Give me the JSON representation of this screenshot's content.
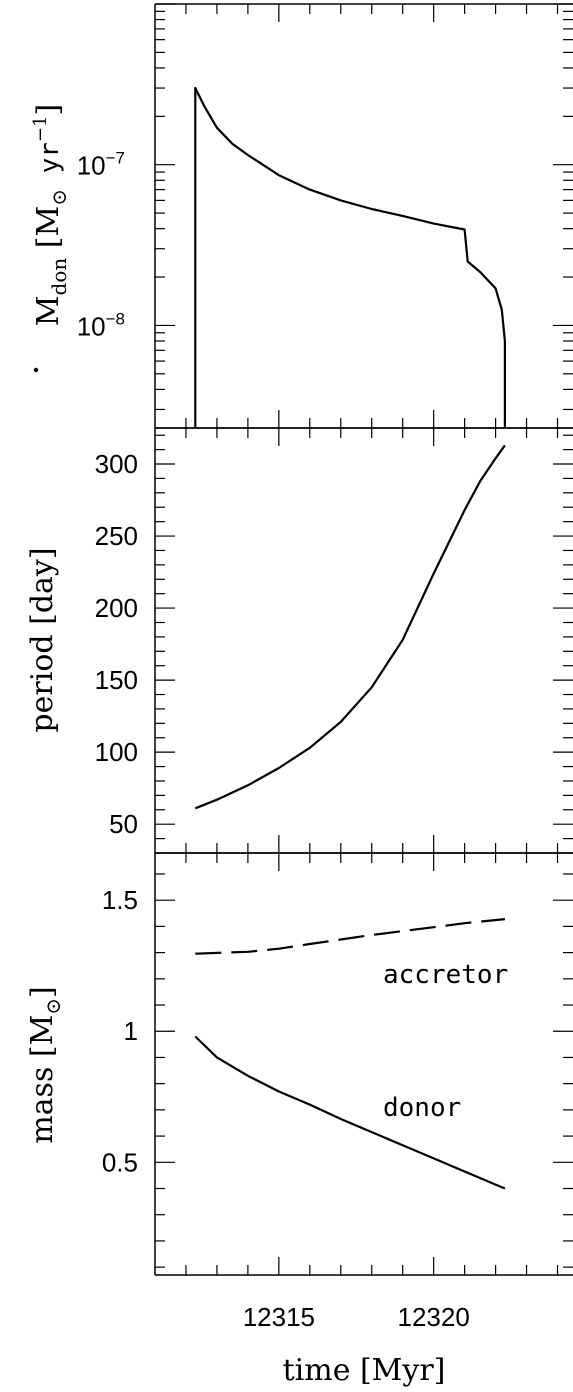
{
  "chart_data": [
    {
      "type": "line",
      "panel": "top",
      "yscale": "log",
      "ylabel": "Ṁdon [M⊙ yr⁻¹]",
      "ylim": [
        2.3e-09,
        1e-06
      ],
      "xlim": [
        12311,
        12324.5
      ],
      "yticks": [
        {
          "value": 1e-07,
          "label": "10",
          "exp": "−7"
        },
        {
          "value": 1e-08,
          "label": "10",
          "exp": "−8"
        }
      ],
      "ylabel_parts": {
        "m": "M",
        "sub": "don",
        "open": "[M",
        "sun": "⊙",
        "unit": " yr",
        "exp": "−1",
        "close": "]"
      },
      "series": [
        {
          "style": "solid",
          "x": [
            12312.3,
            12312.3,
            12312.6,
            12313.0,
            12313.5,
            12314.0,
            12315.0,
            12316.0,
            12317.0,
            12318.0,
            12319.0,
            12320.0,
            12321.0,
            12321.1,
            12321.5,
            12322.0,
            12322.2,
            12322.3,
            12322.3
          ],
          "y": [
            2.3e-09,
            3e-07,
            2.3e-07,
            1.7e-07,
            1.35e-07,
            1.15e-07,
            8.6e-08,
            7e-08,
            6e-08,
            5.3e-08,
            4.8e-08,
            4.3e-08,
            3.95e-08,
            2.5e-08,
            2.15e-08,
            1.7e-08,
            1.25e-08,
            8e-09,
            2.3e-09
          ]
        }
      ]
    },
    {
      "type": "line",
      "panel": "middle",
      "ylabel": "period [day]",
      "ylim": [
        30,
        325
      ],
      "xlim": [
        12311,
        12324.5
      ],
      "yticks": [
        50,
        100,
        150,
        200,
        250,
        300
      ],
      "series": [
        {
          "style": "solid",
          "x": [
            12312.3,
            12313.0,
            12314.0,
            12315.0,
            12316.0,
            12317.0,
            12318.0,
            12319.0,
            12320.0,
            12321.0,
            12321.5,
            12322.0,
            12322.3
          ],
          "y": [
            61,
            67,
            77,
            89,
            103,
            121,
            145,
            178,
            224,
            268,
            288,
            304,
            313
          ]
        }
      ]
    },
    {
      "type": "line",
      "panel": "bottom",
      "ylabel": "mass [M⊙]",
      "ylabel_parts": {
        "text": "mass [M",
        "sun": "⊙",
        "close": "]"
      },
      "ylim": [
        0.07,
        1.68
      ],
      "xlim": [
        12311,
        12324.5
      ],
      "xlabel": "time [Myr]",
      "xticks": [
        12315,
        12320
      ],
      "yticks": [
        0.5,
        1,
        1.5
      ],
      "annotations": [
        "accretor",
        "donor"
      ],
      "series": [
        {
          "name": "accretor",
          "style": "dashed",
          "x": [
            12312.3,
            12314.0,
            12315.0,
            12316.0,
            12317.0,
            12318.0,
            12319.0,
            12320.0,
            12321.0,
            12322.3
          ],
          "y": [
            1.296,
            1.303,
            1.315,
            1.333,
            1.35,
            1.367,
            1.382,
            1.397,
            1.412,
            1.428
          ]
        },
        {
          "name": "donor",
          "style": "solid",
          "x": [
            12312.3,
            12313.0,
            12314.0,
            12315.0,
            12316.0,
            12317.0,
            12318.0,
            12319.0,
            12320.0,
            12321.0,
            12322.0,
            12322.3
          ],
          "y": [
            0.98,
            0.9,
            0.83,
            0.77,
            0.72,
            0.665,
            0.615,
            0.565,
            0.515,
            0.465,
            0.415,
            0.4
          ]
        }
      ]
    }
  ]
}
